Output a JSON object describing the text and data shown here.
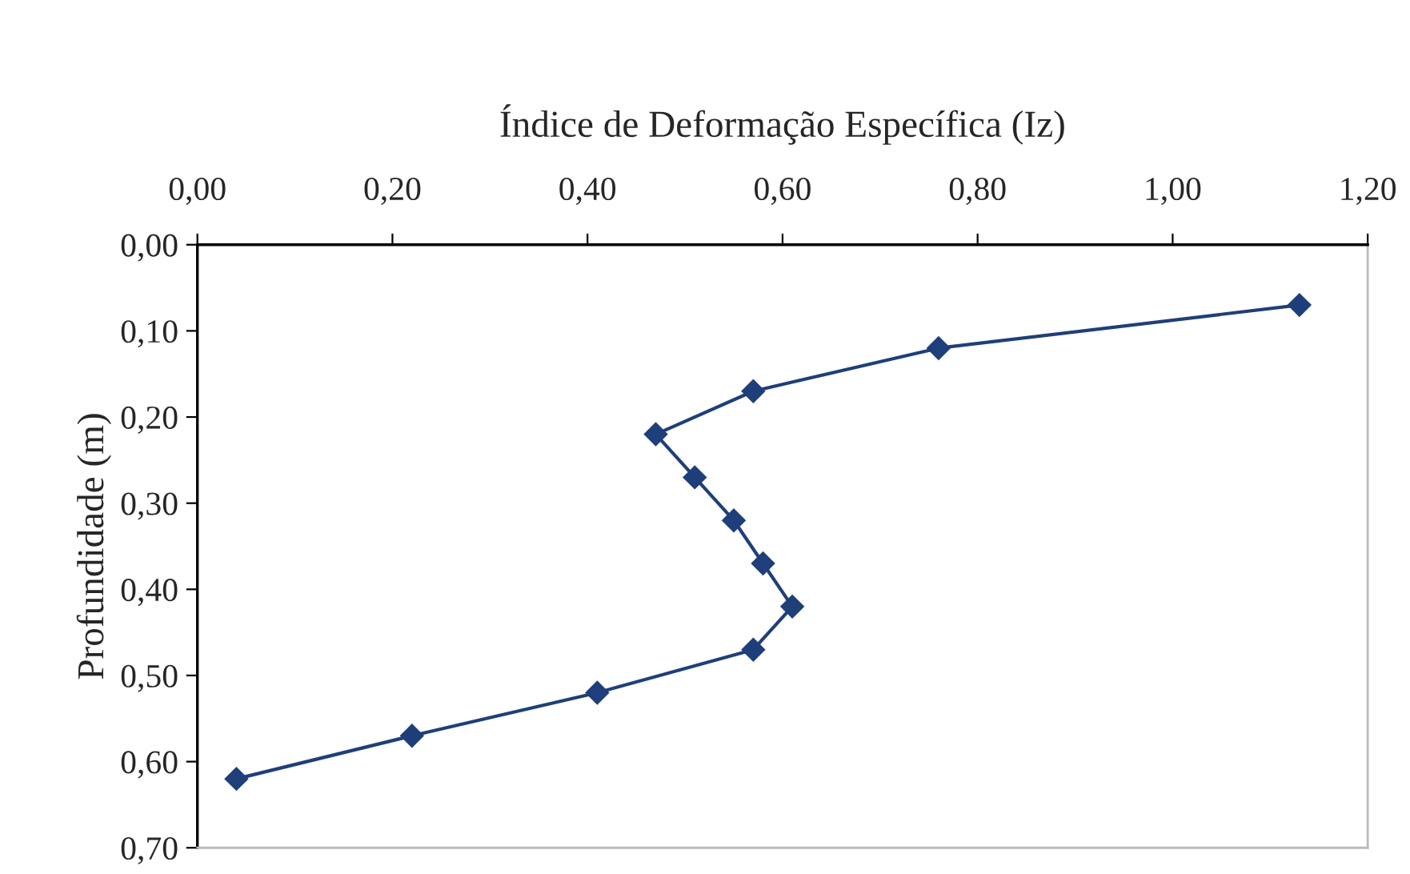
{
  "chart_data": {
    "type": "line",
    "xlabel": "Índice de Deformação Específica (Iz)",
    "ylabel": "Profundidade (m)",
    "series": [
      {
        "color": "#1f3f7a",
        "x": [
          1.13,
          0.76,
          0.57,
          0.47,
          0.51,
          0.55,
          0.58,
          0.61,
          0.57,
          0.41,
          0.22,
          0.04
        ],
        "values": [
          0.07,
          0.12,
          0.17,
          0.22,
          0.27,
          0.32,
          0.37,
          0.42,
          0.47,
          0.52,
          0.57,
          0.62
        ]
      }
    ],
    "xlim": [
      0,
      1.2
    ],
    "xticks": [
      {
        "value": 0,
        "label": "0,00"
      },
      {
        "value": 0.2,
        "label": "0,20"
      },
      {
        "value": 0.4,
        "label": "0,40"
      },
      {
        "value": 0.6,
        "label": "0,60"
      },
      {
        "value": 0.8,
        "label": "0,80"
      },
      {
        "value": 1.0,
        "label": "1,00"
      },
      {
        "value": 1.2,
        "label": "1,20"
      }
    ],
    "ylim": [
      0.7,
      0
    ],
    "yticks": [
      {
        "value": 0,
        "label": "0,00"
      },
      {
        "value": 0.1,
        "label": "0,10"
      },
      {
        "value": 0.2,
        "label": "0,20"
      },
      {
        "value": 0.3,
        "label": "0,30"
      },
      {
        "value": 0.4,
        "label": "0,40"
      },
      {
        "value": 0.5,
        "label": "0,50"
      },
      {
        "value": 0.6,
        "label": "0,60"
      },
      {
        "value": 0.7,
        "label": "0,70"
      }
    ],
    "marker": "diamond",
    "line_style": "solid",
    "grid": false,
    "legend": false
  }
}
